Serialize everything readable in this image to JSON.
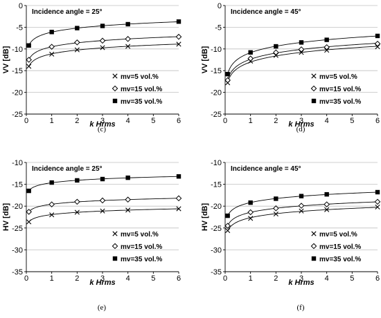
{
  "chart_data": [
    {
      "type": "scatter",
      "panel_label": "(c)",
      "annotation": "Incidence angle = 25°",
      "xlabel": "k Hrms",
      "ylabel": "VV [dB]",
      "xlim": [
        0,
        6
      ],
      "ylim": [
        -25,
        0
      ],
      "xticks": [
        0,
        1,
        2,
        3,
        4,
        5,
        6
      ],
      "yticks": [
        0,
        -5,
        -10,
        -15,
        -20,
        -25
      ],
      "legend_position": "bottom-right",
      "series": [
        {
          "name": "mv=5 vol.%",
          "marker": "x",
          "x": [
            0.1,
            1,
            2,
            3,
            4,
            6
          ],
          "y": [
            -14.0,
            -11.2,
            -10.2,
            -9.7,
            -9.4,
            -8.9
          ]
        },
        {
          "name": "mv=15 vol.%",
          "marker": "diamond",
          "x": [
            0.1,
            1,
            2,
            3,
            4,
            6
          ],
          "y": [
            -12.5,
            -9.5,
            -8.5,
            -8.1,
            -7.7,
            -7.2
          ]
        },
        {
          "name": "mv=35 vol.%",
          "marker": "square",
          "x": [
            0.1,
            1,
            2,
            3,
            4,
            6
          ],
          "y": [
            -9.2,
            -6.1,
            -5.2,
            -4.7,
            -4.3,
            -3.7
          ]
        }
      ]
    },
    {
      "type": "scatter",
      "panel_label": "(d)",
      "annotation": "Incidence angle = 45°",
      "xlabel": "k Hrms",
      "ylabel": "VV [dB]",
      "xlim": [
        0,
        6
      ],
      "ylim": [
        -25,
        0
      ],
      "xticks": [
        0,
        1,
        2,
        3,
        4,
        5,
        6
      ],
      "yticks": [
        0,
        -5,
        -10,
        -15,
        -20,
        -25
      ],
      "legend_position": "bottom-right",
      "series": [
        {
          "name": "mv=5 vol.%",
          "marker": "x",
          "x": [
            0.1,
            1,
            2,
            3,
            4,
            6
          ],
          "y": [
            -17.8,
            -12.8,
            -11.5,
            -10.8,
            -10.3,
            -9.5
          ]
        },
        {
          "name": "mv=15 vol.%",
          "marker": "diamond",
          "x": [
            0.1,
            1,
            2,
            3,
            4,
            6
          ],
          "y": [
            -17.2,
            -12.2,
            -10.8,
            -10.1,
            -9.6,
            -8.8
          ]
        },
        {
          "name": "mv=35 vol.%",
          "marker": "square",
          "x": [
            0.1,
            1,
            2,
            3,
            4,
            6
          ],
          "y": [
            -15.8,
            -10.8,
            -9.4,
            -8.5,
            -7.9,
            -7.0
          ]
        }
      ]
    },
    {
      "type": "scatter",
      "panel_label": "(e)",
      "annotation": "Incidence angle = 25°",
      "xlabel": "k Hrms",
      "ylabel": "HV [dB]",
      "xlim": [
        0,
        6
      ],
      "ylim": [
        -35,
        -10
      ],
      "xticks": [
        0,
        1,
        2,
        3,
        4,
        5,
        6
      ],
      "yticks": [
        -10,
        -15,
        -20,
        -25,
        -30,
        -35
      ],
      "legend_position": "bottom-right",
      "series": [
        {
          "name": "mv=5 vol.%",
          "marker": "x",
          "x": [
            0.1,
            1,
            2,
            3,
            4,
            6
          ],
          "y": [
            -23.6,
            -22.0,
            -21.4,
            -21.1,
            -20.9,
            -20.6
          ]
        },
        {
          "name": "mv=15 vol.%",
          "marker": "diamond",
          "x": [
            0.1,
            1,
            2,
            3,
            4,
            6
          ],
          "y": [
            -21.3,
            -19.6,
            -19.0,
            -18.7,
            -18.5,
            -18.2
          ]
        },
        {
          "name": "mv=35 vol.%",
          "marker": "square",
          "x": [
            0.1,
            1,
            2,
            3,
            4,
            6
          ],
          "y": [
            -16.5,
            -14.6,
            -14.1,
            -13.8,
            -13.5,
            -13.2
          ]
        }
      ]
    },
    {
      "type": "scatter",
      "panel_label": "(f)",
      "annotation": "Incidence angle = 45°",
      "xlabel": "k Hrms",
      "ylabel": "HV [dB]",
      "xlim": [
        0,
        6
      ],
      "ylim": [
        -35,
        -10
      ],
      "xticks": [
        0,
        1,
        2,
        3,
        4,
        5,
        6
      ],
      "yticks": [
        -10,
        -15,
        -20,
        -25,
        -30,
        -35
      ],
      "legend_position": "bottom-right",
      "series": [
        {
          "name": "mv=5 vol.%",
          "marker": "x",
          "x": [
            0.1,
            1,
            2,
            3,
            4,
            6
          ],
          "y": [
            -25.6,
            -22.8,
            -21.8,
            -21.1,
            -20.8,
            -20.2
          ]
        },
        {
          "name": "mv=15 vol.%",
          "marker": "diamond",
          "x": [
            0.1,
            1,
            2,
            3,
            4,
            6
          ],
          "y": [
            -24.5,
            -21.4,
            -20.5,
            -19.9,
            -19.6,
            -19.0
          ]
        },
        {
          "name": "mv=35 vol.%",
          "marker": "square",
          "x": [
            0.1,
            1,
            2,
            3,
            4,
            6
          ],
          "y": [
            -22.2,
            -19.2,
            -18.3,
            -17.7,
            -17.3,
            -16.8
          ]
        }
      ]
    }
  ]
}
